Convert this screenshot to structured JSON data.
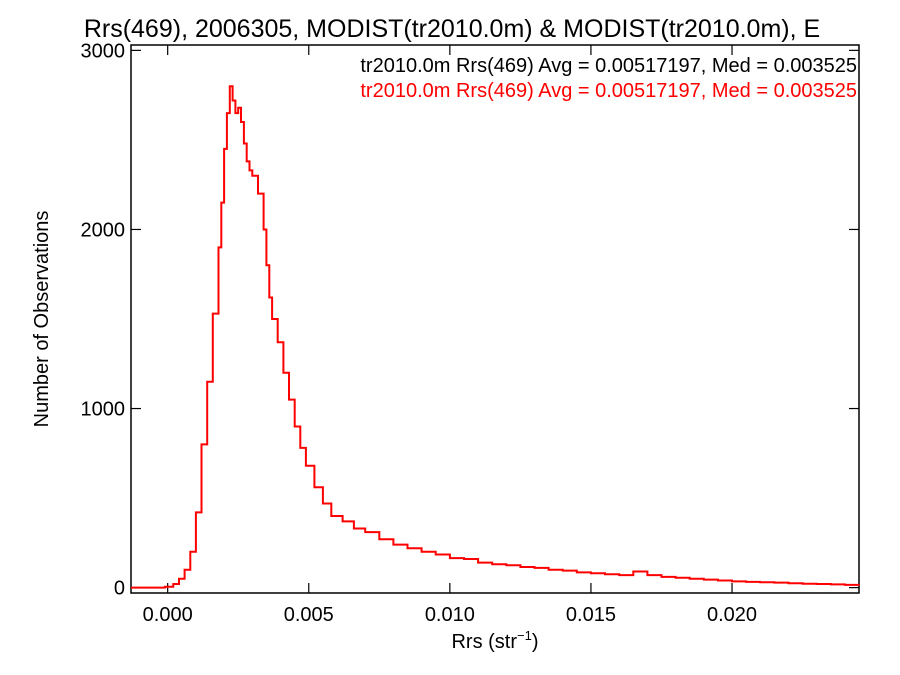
{
  "chart_data": {
    "type": "line",
    "title": "Rrs(469), 2006305, MODIST(tr2010.0m) & MODIST(tr2010.0m), E",
    "xlabel": "Rrs (str",
    "xlabel_sup": "−1",
    "xlabel_end": ")",
    "ylabel": "Number of Observations",
    "xlim": [
      -0.0013,
      0.0245
    ],
    "ylim": [
      -30,
      3030
    ],
    "xticks": [
      0.0,
      0.005,
      0.01,
      0.015,
      0.02
    ],
    "xtick_labels": [
      "0.000",
      "0.005",
      "0.010",
      "0.015",
      "0.020"
    ],
    "yticks": [
      0,
      1000,
      2000,
      3000
    ],
    "ytick_labels": [
      "0",
      "1000",
      "2000",
      "3000"
    ],
    "grid": false,
    "legend_placement": "top-right",
    "legend": [
      {
        "text": "tr2010.0m Rrs(469) Avg = 0.00517197, Med = 0.003525",
        "color": "#000000"
      },
      {
        "text": "tr2010.0m Rrs(469) Avg = 0.00517197, Med = 0.003525",
        "color": "#ff0000"
      }
    ],
    "series": [
      {
        "color": "#ff0000",
        "step": true,
        "x": [
          -0.0013,
          -0.0006,
          -0.0001,
          0.0002,
          0.0004,
          0.0006,
          0.0008,
          0.001,
          0.0012,
          0.0014,
          0.0016,
          0.0018,
          0.0019,
          0.002,
          0.0021,
          0.0022,
          0.0023,
          0.0024,
          0.0025,
          0.0026,
          0.0027,
          0.0028,
          0.0029,
          0.003,
          0.0032,
          0.0034,
          0.0035,
          0.0036,
          0.0037,
          0.0039,
          0.0041,
          0.0043,
          0.0045,
          0.0047,
          0.0049,
          0.0052,
          0.0055,
          0.0058,
          0.0062,
          0.0066,
          0.007,
          0.0075,
          0.008,
          0.0085,
          0.009,
          0.0095,
          0.01,
          0.0105,
          0.011,
          0.0115,
          0.012,
          0.0125,
          0.013,
          0.0135,
          0.014,
          0.0145,
          0.015,
          0.0155,
          0.016,
          0.0165,
          0.017,
          0.0175,
          0.018,
          0.0185,
          0.019,
          0.0195,
          0.02,
          0.0205,
          0.021,
          0.0215,
          0.022,
          0.0225,
          0.023,
          0.0235,
          0.024,
          0.0245
        ],
        "values": [
          0,
          0,
          5,
          20,
          50,
          100,
          200,
          420,
          800,
          1150,
          1530,
          1900,
          2150,
          2450,
          2650,
          2800,
          2720,
          2650,
          2680,
          2600,
          2480,
          2380,
          2330,
          2300,
          2200,
          2000,
          1800,
          1620,
          1500,
          1370,
          1200,
          1050,
          900,
          780,
          680,
          560,
          470,
          400,
          370,
          330,
          310,
          270,
          240,
          220,
          200,
          185,
          165,
          160,
          140,
          130,
          125,
          115,
          110,
          100,
          95,
          85,
          80,
          75,
          70,
          90,
          70,
          60,
          55,
          50,
          45,
          40,
          35,
          32,
          30,
          28,
          25,
          22,
          20,
          18,
          15,
          12
        ]
      }
    ]
  }
}
